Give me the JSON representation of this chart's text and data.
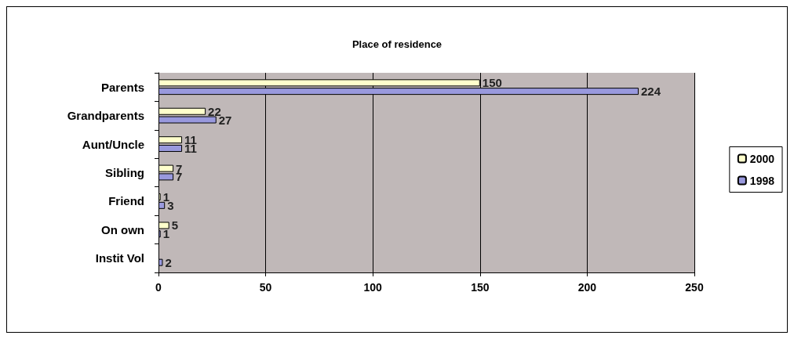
{
  "chart_data": {
    "type": "bar",
    "title": "Place of residence",
    "orientation": "horizontal",
    "categories": [
      "Parents",
      "Grandparents",
      "Aunt/Uncle",
      "Sibling",
      "Friend",
      "On own",
      "Instit Vol"
    ],
    "series": [
      {
        "name": "2000",
        "color": "#ffffcc",
        "values": [
          150,
          22,
          11,
          7,
          1,
          5,
          null
        ]
      },
      {
        "name": "1998",
        "color": "#9999dd",
        "values": [
          224,
          27,
          11,
          7,
          3,
          1,
          2
        ]
      }
    ],
    "xlim": [
      0,
      250
    ],
    "xticks": [
      0,
      50,
      100,
      150,
      200,
      250
    ],
    "grid": "x",
    "legend": "right",
    "data_labels": true
  }
}
